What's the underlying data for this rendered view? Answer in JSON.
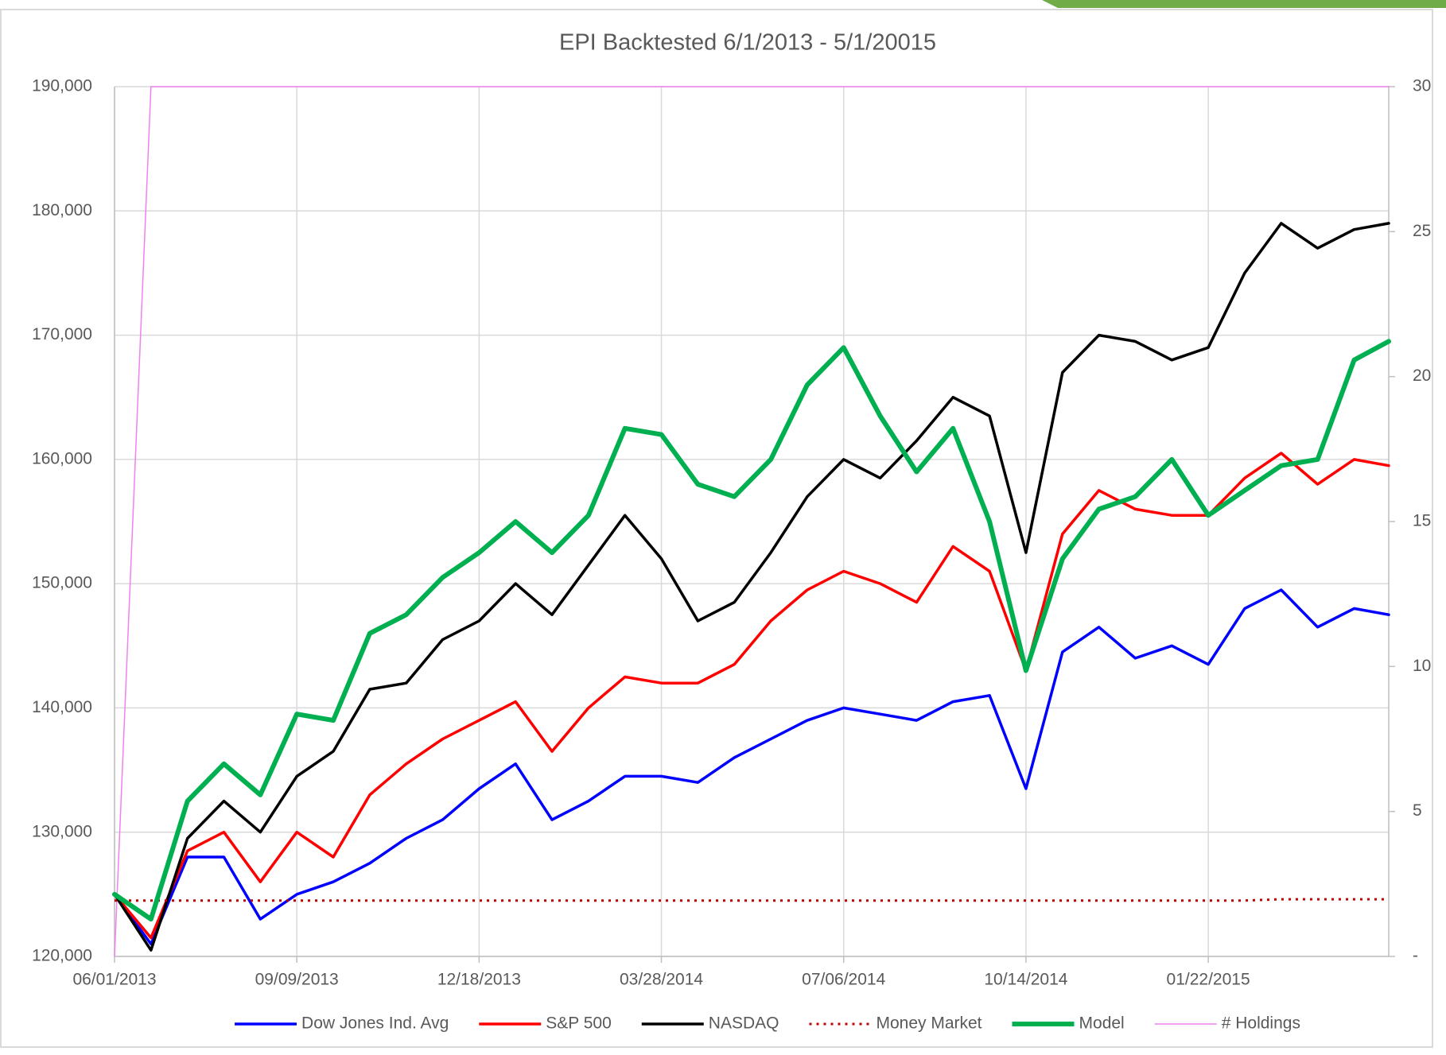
{
  "chart_data": {
    "type": "line",
    "title": "EPI Backtested 6/1/2013 - 5/1/20015",
    "x": [
      "06/01/2013",
      "06/21/2013",
      "07/11/2013",
      "07/31/2013",
      "08/20/2013",
      "09/09/2013",
      "09/29/2013",
      "10/19/2013",
      "11/08/2013",
      "11/28/2013",
      "12/18/2013",
      "01/07/2014",
      "01/27/2014",
      "02/16/2014",
      "03/08/2014",
      "03/28/2014",
      "04/17/2014",
      "05/07/2014",
      "05/27/2014",
      "06/16/2014",
      "07/06/2014",
      "07/26/2014",
      "08/15/2014",
      "09/04/2014",
      "09/24/2014",
      "10/14/2014",
      "11/03/2014",
      "11/23/2014",
      "12/13/2014",
      "01/02/2015",
      "01/22/2015",
      "02/11/2015",
      "03/03/2015",
      "03/23/2015",
      "04/12/2015",
      "05/01/2015"
    ],
    "xlim": [
      "06/01/2013",
      "05/01/2015"
    ],
    "xticks": [
      "06/01/2013",
      "09/09/2013",
      "12/18/2013",
      "03/28/2014",
      "07/06/2014",
      "10/14/2014",
      "01/22/2015"
    ],
    "ylim": [
      120000,
      190000
    ],
    "yticks": [
      {
        "value": 120000,
        "label": "120,000"
      },
      {
        "value": 130000,
        "label": "130,000"
      },
      {
        "value": 140000,
        "label": "140,000"
      },
      {
        "value": 150000,
        "label": "150,000"
      },
      {
        "value": 160000,
        "label": "160,000"
      },
      {
        "value": 170000,
        "label": "170,000"
      },
      {
        "value": 180000,
        "label": "180,000"
      },
      {
        "value": 190000,
        "label": "190,000"
      }
    ],
    "y2lim": [
      0,
      30
    ],
    "y2ticks": [
      {
        "value": 0,
        "label": "-"
      },
      5,
      10,
      15,
      20,
      25,
      30
    ],
    "grid": true,
    "legend": "bottom",
    "series": [
      {
        "name": "# Holdings",
        "color": "#ee82ee",
        "axis": "y2",
        "line_width": 1.5,
        "line_style": "solid",
        "values": [
          0,
          30,
          30,
          30,
          30,
          30,
          30,
          30,
          30,
          30,
          30,
          30,
          30,
          30,
          30,
          30,
          30,
          30,
          30,
          30,
          30,
          30,
          30,
          30,
          30,
          30,
          30,
          30,
          30,
          30,
          30,
          30,
          30,
          30,
          30,
          30
        ]
      },
      {
        "name": "Dow Jones Ind. Avg",
        "color": "#0000ff",
        "line_width": 3.5,
        "line_style": "solid",
        "values": [
          125000,
          121000,
          128000,
          128000,
          123000,
          125000,
          126000,
          127500,
          129500,
          131000,
          133500,
          135500,
          131000,
          132500,
          134500,
          134500,
          134000,
          136000,
          137500,
          139000,
          140000,
          139500,
          139000,
          140500,
          141000,
          133500,
          144500,
          146500,
          144000,
          145000,
          143500,
          148000,
          149500,
          146500,
          148000,
          147500
        ]
      },
      {
        "name": "S&P 500",
        "color": "#ff0000",
        "line_width": 3.5,
        "line_style": "solid",
        "values": [
          125000,
          121500,
          128500,
          130000,
          126000,
          130000,
          128000,
          133000,
          135500,
          137500,
          139000,
          140500,
          136500,
          140000,
          142500,
          142000,
          142000,
          143500,
          147000,
          149500,
          151000,
          150000,
          148500,
          153000,
          151000,
          143000,
          154000,
          157500,
          156000,
          155500,
          155500,
          158500,
          160500,
          158000,
          160000,
          159500
        ]
      },
      {
        "name": "NASDAQ",
        "color": "#000000",
        "line_width": 3.5,
        "line_style": "solid",
        "values": [
          125000,
          120500,
          129500,
          132500,
          130000,
          134500,
          136500,
          141500,
          142000,
          145500,
          147000,
          150000,
          147500,
          151500,
          155500,
          152000,
          147000,
          148500,
          152500,
          157000,
          160000,
          158500,
          161500,
          165000,
          163500,
          152500,
          167000,
          170000,
          169500,
          168000,
          169000,
          175000,
          179000,
          177000,
          178500,
          179000
        ]
      },
      {
        "name": "Money Market",
        "color": "#c00000",
        "line_width": 3,
        "line_style": "dotted",
        "values": [
          124500,
          124500,
          124500,
          124500,
          124500,
          124500,
          124500,
          124500,
          124500,
          124500,
          124500,
          124500,
          124500,
          124500,
          124500,
          124500,
          124500,
          124500,
          124500,
          124500,
          124500,
          124500,
          124500,
          124500,
          124500,
          124500,
          124500,
          124500,
          124500,
          124500,
          124500,
          124500,
          124600,
          124600,
          124600,
          124600
        ]
      },
      {
        "name": "Model",
        "color": "#00b050",
        "line_width": 6,
        "line_style": "solid",
        "values": [
          125000,
          123000,
          132500,
          135500,
          133000,
          139500,
          139000,
          146000,
          147500,
          150500,
          152500,
          155000,
          152500,
          155500,
          162500,
          162000,
          158000,
          157000,
          160000,
          166000,
          169000,
          163500,
          159000,
          162500,
          155000,
          143000,
          152000,
          156000,
          157000,
          160000,
          155500,
          157500,
          159500,
          160000,
          168000,
          169500
        ]
      }
    ]
  }
}
